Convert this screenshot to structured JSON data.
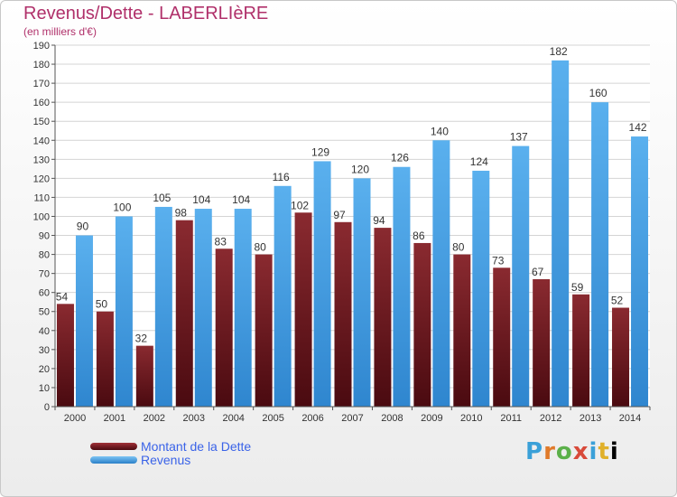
{
  "header": {
    "title": "Revenus/Dette - LABERLIèRE",
    "subtitle": "(en milliers d'€)"
  },
  "legend": {
    "dette_label": "Montant de la Dette",
    "revenus_label": "Revenus"
  },
  "logo": {
    "text": "Proxiti"
  },
  "colors": {
    "dette": "#7a1f24",
    "revenus": "#4aa3e6",
    "grid": "#d0d0d0",
    "title": "#b0306a",
    "legend_text": "#3a63e8"
  },
  "chart_data": {
    "type": "bar",
    "title": "Revenus/Dette - LABERLIèRE",
    "subtitle": "(en milliers d'€)",
    "categories": [
      "2000",
      "2001",
      "2002",
      "2003",
      "2004",
      "2005",
      "2006",
      "2007",
      "2008",
      "2009",
      "2010",
      "2011",
      "2012",
      "2013",
      "2014"
    ],
    "series": [
      {
        "name": "Montant de la Dette",
        "color": "#7a1f24",
        "values": [
          54,
          50,
          32,
          98,
          83,
          80,
          102,
          97,
          94,
          86,
          80,
          73,
          67,
          59,
          52
        ]
      },
      {
        "name": "Revenus",
        "color": "#4aa3e6",
        "values": [
          90,
          100,
          105,
          104,
          104,
          116,
          129,
          120,
          126,
          140,
          124,
          137,
          182,
          160,
          142
        ]
      }
    ],
    "ylim": [
      0,
      190
    ],
    "ytick_step": 10,
    "grid": true,
    "legend_position": "bottom-left"
  }
}
